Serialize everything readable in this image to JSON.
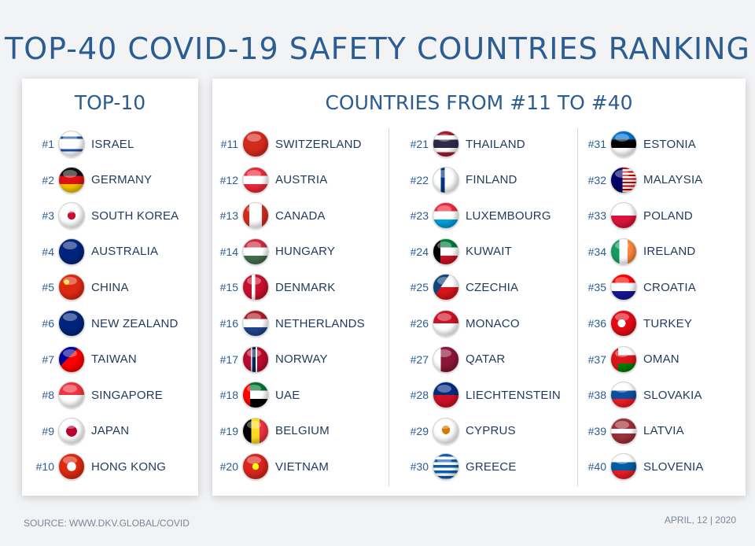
{
  "title": "TOP-40 COVID-19 SAFETY COUNTRIES RANKING",
  "left_panel_title": "TOP-10",
  "right_panel_title": "COUNTRIES FROM #11 TO #40",
  "source": "SOURCE: WWW.DKV.GLOBAL/COVID",
  "date": "APRIL, 12 | 2020",
  "colors": {
    "title": "#2b5d92",
    "country_text": "#1f3a5c",
    "footer": "#7a8797"
  },
  "columns": [
    [
      {
        "rank": "#1",
        "country": "ISRAEL",
        "flag_icon": "israel-flag-icon",
        "flag_bg": "linear-gradient(#fff 20%, #1d4ea6 20%, #1d4ea6 30%, #fff 30%, #fff 70%, #1d4ea6 70%, #1d4ea6 80%, #fff 80%)"
      },
      {
        "rank": "#2",
        "country": "GERMANY",
        "flag_icon": "germany-flag-icon",
        "flag_bg": "linear-gradient(#111 33%, #d11 33%, #d11 66%, #f5c400 66%)"
      },
      {
        "rank": "#3",
        "country": "SOUTH KOREA",
        "flag_icon": "south-korea-flag-icon",
        "flag_bg": "radial-gradient(circle at 50% 50%, #c8102e 0 22%, #ffffff 23%)"
      },
      {
        "rank": "#4",
        "country": "AUSTRALIA",
        "flag_icon": "australia-flag-icon",
        "flag_bg": "linear-gradient(135deg, #c8102e 0 15%, #00247d 15%)"
      },
      {
        "rank": "#5",
        "country": "CHINA",
        "flag_icon": "china-flag-icon",
        "flag_bg": "radial-gradient(circle at 30% 30%, #ffde00 0 10%, #de2910 11%)"
      },
      {
        "rank": "#6",
        "country": "NEW ZEALAND",
        "flag_icon": "new-zealand-flag-icon",
        "flag_bg": "linear-gradient(135deg, #c8102e 0 15%, #00247d 15%)"
      },
      {
        "rank": "#7",
        "country": "TAIWAN",
        "flag_icon": "taiwan-flag-icon",
        "flag_bg": "linear-gradient(135deg, #000095 0 40%, #fe0000 40%)"
      },
      {
        "rank": "#8",
        "country": "SINGAPORE",
        "flag_icon": "singapore-flag-icon",
        "flag_bg": "linear-gradient(#ef3340 50%, #ffffff 50%)"
      },
      {
        "rank": "#9",
        "country": "JAPAN",
        "flag_icon": "japan-flag-icon",
        "flag_bg": "radial-gradient(circle, #bc002d 0 30%, #ffffff 31%)"
      },
      {
        "rank": "#10",
        "country": "HONG KONG",
        "flag_icon": "hong-kong-flag-icon",
        "flag_bg": "radial-gradient(circle, #ffffff 0 25%, #de2910 26%)"
      }
    ],
    [
      {
        "rank": "#11",
        "country": "SWITZERLAND",
        "flag_icon": "switzerland-flag-icon",
        "flag_bg": "linear-gradient(#d52b1e, #d52b1e)"
      },
      {
        "rank": "#12",
        "country": "AUSTRIA",
        "flag_icon": "austria-flag-icon",
        "flag_bg": "linear-gradient(#ed2939 33%, #fff 33%, #fff 66%, #ed2939 66%)"
      },
      {
        "rank": "#13",
        "country": "CANADA",
        "flag_icon": "canada-flag-icon",
        "flag_bg": "linear-gradient(90deg, #d52b1e 25%, #fff 25%, #fff 75%, #d52b1e 75%)"
      },
      {
        "rank": "#14",
        "country": "HUNGARY",
        "flag_icon": "hungary-flag-icon",
        "flag_bg": "linear-gradient(#cd2a3e 33%, #fff 33%, #fff 66%, #436f4d 66%)"
      },
      {
        "rank": "#15",
        "country": "DENMARK",
        "flag_icon": "denmark-flag-icon",
        "flag_bg": "linear-gradient(90deg, #c8102e 35%, #fff 35%, #fff 48%, #c8102e 48%)"
      },
      {
        "rank": "#16",
        "country": "NETHERLANDS",
        "flag_icon": "netherlands-flag-icon",
        "flag_bg": "linear-gradient(#ae1c28 33%, #fff 33%, #fff 66%, #21468b 66%)"
      },
      {
        "rank": "#17",
        "country": "NORWAY",
        "flag_icon": "norway-flag-icon",
        "flag_bg": "linear-gradient(90deg, #ba0c2f 32%, #fff 32%, #00205b 40%, #00205b 50%, #fff 50%, #fff 56%, #ba0c2f 56%)"
      },
      {
        "rank": "#18",
        "country": "UAE",
        "flag_icon": "uae-flag-icon",
        "flag_bg": "linear-gradient(90deg, #ff0000 28%, transparent 28%), linear-gradient(#00732f 33%, #fff 33%, #fff 66%, #000 66%)"
      },
      {
        "rank": "#19",
        "country": "BELGIUM",
        "flag_icon": "belgium-flag-icon",
        "flag_bg": "linear-gradient(90deg, #000 33%, #fdda24 33%, #fdda24 66%, #ef3340 66%)"
      },
      {
        "rank": "#20",
        "country": "VIETNAM",
        "flag_icon": "vietnam-flag-icon",
        "flag_bg": "radial-gradient(circle, #ffff00 0 18%, #da251d 19%)"
      }
    ],
    [
      {
        "rank": "#21",
        "country": "THAILAND",
        "flag_icon": "thailand-flag-icon",
        "flag_bg": "linear-gradient(#a51931 16%, #fff 16%, #fff 33%, #2d2a4a 33%, #2d2a4a 66%, #fff 66%, #fff 83%, #a51931 83%)"
      },
      {
        "rank": "#22",
        "country": "FINLAND",
        "flag_icon": "finland-flag-icon",
        "flag_bg": "linear-gradient(90deg, #fff 30%, #003580 30%, #003580 45%, #fff 45%)"
      },
      {
        "rank": "#23",
        "country": "LUXEMBOURG",
        "flag_icon": "luxembourg-flag-icon",
        "flag_bg": "linear-gradient(#ed2939 33%, #fff 33%, #fff 66%, #00a1de 66%)"
      },
      {
        "rank": "#24",
        "country": "KUWAIT",
        "flag_icon": "kuwait-flag-icon",
        "flag_bg": "linear-gradient(90deg, #000 28%, transparent 28%), linear-gradient(#007a3d 33%, #fff 33%, #fff 66%, #ce1126 66%)"
      },
      {
        "rank": "#25",
        "country": "CZECHIA",
        "flag_icon": "czechia-flag-icon",
        "flag_bg": "linear-gradient(125deg, #11457e 38%, transparent 38%), linear-gradient(#fff 50%, #d7141a 50%)"
      },
      {
        "rank": "#26",
        "country": "MONACO",
        "flag_icon": "monaco-flag-icon",
        "flag_bg": "linear-gradient(#ce1126 50%, #fff 50%)"
      },
      {
        "rank": "#27",
        "country": "QATAR",
        "flag_icon": "qatar-flag-icon",
        "flag_bg": "linear-gradient(90deg, #fff 30%, #8a1538 30%)"
      },
      {
        "rank": "#28",
        "country": "LIECHTENSTEIN",
        "flag_icon": "liechtenstein-flag-icon",
        "flag_bg": "linear-gradient(#002b7f 50%, #ce1126 50%)"
      },
      {
        "rank": "#29",
        "country": "CYPRUS",
        "flag_icon": "cyprus-flag-icon",
        "flag_bg": "radial-gradient(ellipse at 50% 45%, #d57800 0 22%, #ffffff 23%)"
      },
      {
        "rank": "#30",
        "country": "GREECE",
        "flag_icon": "greece-flag-icon",
        "flag_bg": "repeating-linear-gradient(#0d5eaf 0 11%, #fff 11% 22%)"
      }
    ],
    [
      {
        "rank": "#31",
        "country": "ESTONIA",
        "flag_icon": "estonia-flag-icon",
        "flag_bg": "linear-gradient(#0072ce 33%, #000 33%, #000 66%, #fff 66%)"
      },
      {
        "rank": "#32",
        "country": "MALAYSIA",
        "flag_icon": "malaysia-flag-icon",
        "flag_bg": "linear-gradient(90deg, #010066 45%, transparent 45%), repeating-linear-gradient(#cc0001 0 7%, #fff 7% 14%)"
      },
      {
        "rank": "#33",
        "country": "POLAND",
        "flag_icon": "poland-flag-icon",
        "flag_bg": "linear-gradient(#fff 50%, #dc143c 50%)"
      },
      {
        "rank": "#34",
        "country": "IRELAND",
        "flag_icon": "ireland-flag-icon",
        "flag_bg": "linear-gradient(90deg, #169b62 33%, #fff 33%, #fff 66%, #ff883e 66%)"
      },
      {
        "rank": "#35",
        "country": "CROATIA",
        "flag_icon": "croatia-flag-icon",
        "flag_bg": "linear-gradient(#ff0000 33%, #fff 33%, #fff 66%, #171796 66%)"
      },
      {
        "rank": "#36",
        "country": "TURKEY",
        "flag_icon": "turkey-flag-icon",
        "flag_bg": "radial-gradient(circle at 42% 50%, #fff 0 20%, #e30a17 21%)"
      },
      {
        "rank": "#37",
        "country": "OMAN",
        "flag_icon": "oman-flag-icon",
        "flag_bg": "linear-gradient(90deg, #db161b 28%, transparent 28%), linear-gradient(#fff 33%, #db161b 33%, #db161b 66%, #008000 66%)"
      },
      {
        "rank": "#38",
        "country": "SLOVAKIA",
        "flag_icon": "slovakia-flag-icon",
        "flag_bg": "linear-gradient(#fff 33%, #0b4ea2 33%, #0b4ea2 66%, #ee1c25 66%)"
      },
      {
        "rank": "#39",
        "country": "LATVIA",
        "flag_icon": "latvia-flag-icon",
        "flag_bg": "linear-gradient(#9e3039 40%, #fff 40%, #fff 60%, #9e3039 60%)"
      },
      {
        "rank": "#40",
        "country": "SLOVENIA",
        "flag_icon": "slovenia-flag-icon",
        "flag_bg": "linear-gradient(#fff 33%, #005da4 33%, #005da4 66%, #ed1c24 66%)"
      }
    ]
  ]
}
